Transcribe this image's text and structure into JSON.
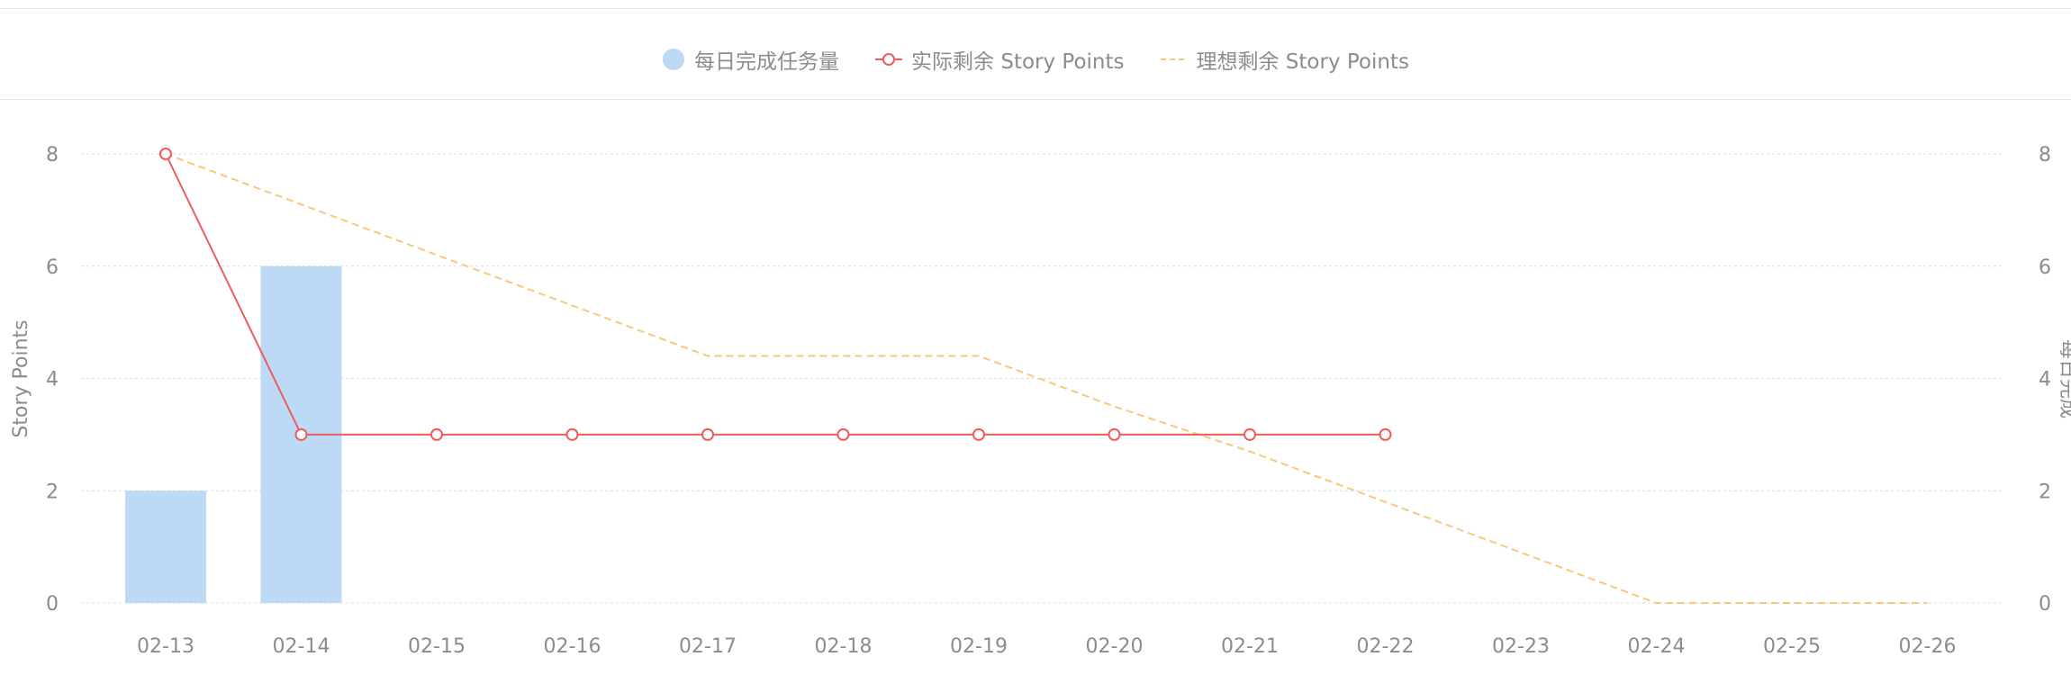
{
  "legend": {
    "bar_label": "每日完成任务量",
    "actual_label": "实际剩余 Story Points",
    "ideal_label": "理想剩余 Story Points"
  },
  "colors": {
    "bar": "#bcd9f5",
    "actual": "#ee5b5b",
    "ideal": "#f7c878",
    "grid": "#dcdcdc",
    "text": "#8c8c8c"
  },
  "chart_data": {
    "type": "bar",
    "title": "",
    "xlabel": "",
    "ylabel": "Story Points",
    "y2label": "每日完成",
    "ylim": [
      0,
      8
    ],
    "y_ticks": [
      0,
      2,
      4,
      6,
      8
    ],
    "categories": [
      "02-13",
      "02-14",
      "02-15",
      "02-16",
      "02-17",
      "02-18",
      "02-19",
      "02-20",
      "02-21",
      "02-22",
      "02-23",
      "02-24",
      "02-25",
      "02-26"
    ],
    "series": [
      {
        "name": "每日完成任务量",
        "type": "bar",
        "values": [
          2,
          6,
          null,
          null,
          null,
          null,
          null,
          null,
          null,
          null,
          null,
          null,
          null,
          null
        ]
      },
      {
        "name": "实际剩余 Story Points",
        "type": "line",
        "values": [
          8,
          3,
          3,
          3,
          3,
          3,
          3,
          3,
          3,
          3,
          null,
          null,
          null,
          null
        ]
      },
      {
        "name": "理想剩余 Story Points",
        "type": "line-dashed",
        "values": [
          8,
          7.1,
          6.2,
          5.3,
          4.4,
          4.4,
          4.4,
          3.5,
          2.7,
          1.8,
          0.9,
          0,
          0,
          0
        ]
      }
    ]
  }
}
